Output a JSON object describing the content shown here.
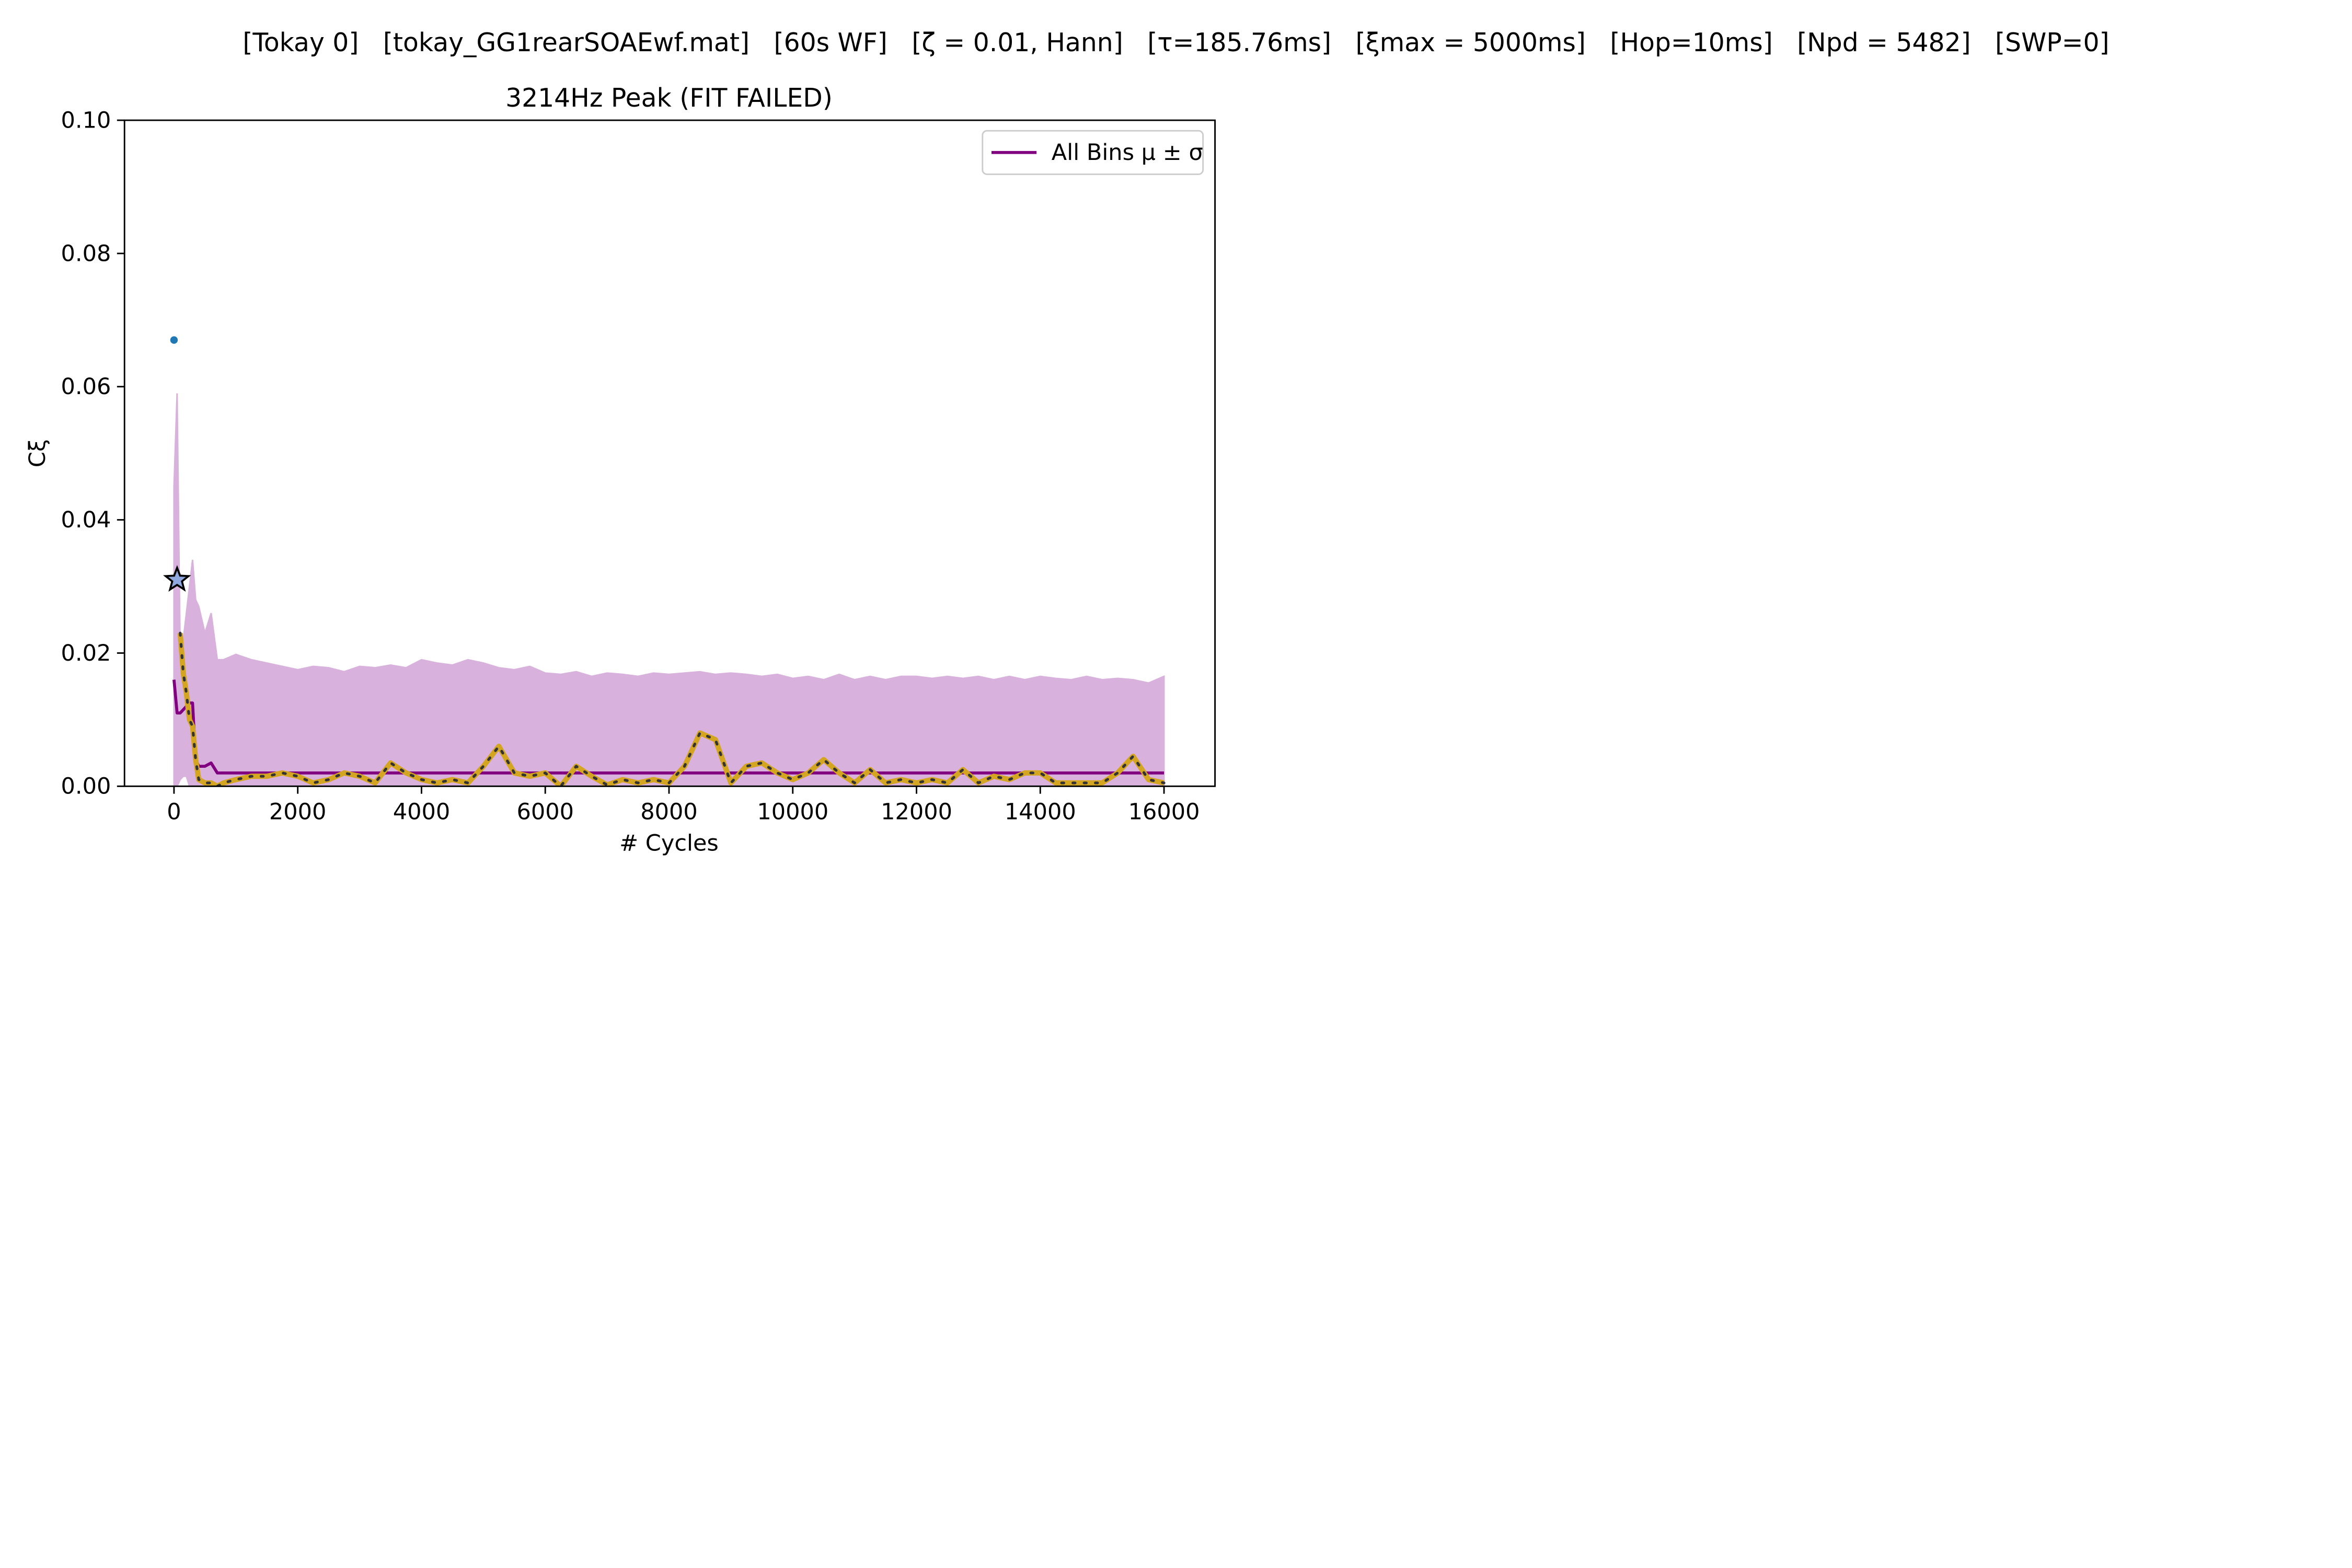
{
  "chart_data": {
    "type": "line",
    "suptitle": "[Tokay 0]   [tokay_GG1rearSOAEwf.mat]   [60s WF]   [ζ = 0.01, Hann]   [τ=185.76ms]   [ξmax = 5000ms]   [Hop=10ms]   [Npd = 5482]   [SWP=0]",
    "title": "3214Hz Peak (FIT FAILED)",
    "xlabel": "# Cycles",
    "ylabel": "Cξ",
    "xlim": [
      -800,
      16824
    ],
    "ylim": [
      0,
      0.1
    ],
    "xticks": [
      0,
      2000,
      4000,
      6000,
      8000,
      10000,
      12000,
      14000,
      16000
    ],
    "yticks": [
      {
        "value": 0,
        "label": "0.00"
      },
      {
        "value": 0.02,
        "label": "0.02"
      },
      {
        "value": 0.04,
        "label": "0.04"
      },
      {
        "value": 0.06,
        "label": "0.06"
      },
      {
        "value": 0.08,
        "label": "0.08"
      },
      {
        "value": 0.1,
        "label": "0.10"
      }
    ],
    "legend": "upper right",
    "x": [
      0,
      50,
      100,
      150,
      200,
      250,
      300,
      350,
      400,
      500,
      600,
      700,
      800,
      1000,
      1250,
      1500,
      1750,
      2000,
      2250,
      2500,
      2750,
      3000,
      3250,
      3500,
      3750,
      4000,
      4250,
      4500,
      4750,
      5000,
      5250,
      5500,
      5750,
      6000,
      6250,
      6500,
      6750,
      7000,
      7250,
      7500,
      7750,
      8000,
      8250,
      8500,
      8750,
      9000,
      9250,
      9500,
      9750,
      10000,
      10250,
      10500,
      10750,
      11000,
      11250,
      11500,
      11750,
      12000,
      12250,
      12500,
      12750,
      13000,
      13250,
      13500,
      13750,
      14000,
      14250,
      14500,
      14750,
      15000,
      15250,
      15500,
      15750,
      16000
    ],
    "series": [
      {
        "name": "All Bins μ ± σ",
        "color": "#800080",
        "band_color": "#d8b2dc",
        "values": [
          0.016,
          0.011,
          0.011,
          0.0115,
          0.012,
          0.0125,
          0.0125,
          0.004,
          0.003,
          0.003,
          0.0035,
          0.002,
          0.002,
          0.002,
          0.002,
          0.002,
          0.002,
          0.002,
          0.002,
          0.002,
          0.002,
          0.002,
          0.002,
          0.002,
          0.002,
          0.002,
          0.002,
          0.002,
          0.002,
          0.002,
          0.002,
          0.002,
          0.002,
          0.002,
          0.002,
          0.002,
          0.002,
          0.002,
          0.002,
          0.002,
          0.002,
          0.002,
          0.002,
          0.002,
          0.002,
          0.002,
          0.002,
          0.002,
          0.002,
          0.002,
          0.002,
          0.002,
          0.002,
          0.002,
          0.002,
          0.002,
          0.002,
          0.002,
          0.002,
          0.002,
          0.002,
          0.002,
          0.002,
          0.002,
          0.002,
          0.002,
          0.002,
          0.002,
          0.002,
          0.002,
          0.002,
          0.002,
          0.002,
          0.002
        ],
        "upper": [
          0.045,
          0.059,
          0.02,
          0.022,
          0.026,
          0.03,
          0.034,
          0.028,
          0.027,
          0.023,
          0.026,
          0.019,
          0.019,
          0.0198,
          0.019,
          0.0185,
          0.018,
          0.0175,
          0.018,
          0.0178,
          0.0172,
          0.018,
          0.0178,
          0.0182,
          0.0178,
          0.019,
          0.0185,
          0.0182,
          0.019,
          0.0185,
          0.0178,
          0.0175,
          0.018,
          0.017,
          0.0168,
          0.0172,
          0.0165,
          0.017,
          0.0168,
          0.0165,
          0.017,
          0.0168,
          0.017,
          0.0172,
          0.0168,
          0.017,
          0.0168,
          0.0165,
          0.0168,
          0.0162,
          0.0165,
          0.016,
          0.0168,
          0.016,
          0.0165,
          0.016,
          0.0165,
          0.0165,
          0.0162,
          0.0165,
          0.0162,
          0.0165,
          0.016,
          0.0165,
          0.016,
          0.0165,
          0.0162,
          0.016,
          0.0165,
          0.016,
          0.0162,
          0.016,
          0.0155,
          0.0165
        ],
        "lower": [
          0,
          0,
          0.001,
          0.0015,
          0.0015,
          0,
          0,
          0,
          0,
          0,
          0,
          0,
          0,
          0,
          0,
          0,
          0,
          0,
          0,
          0,
          0,
          0,
          0,
          0,
          0,
          0,
          0,
          0,
          0,
          0,
          0,
          0,
          0,
          0,
          0,
          0,
          0,
          0,
          0,
          0,
          0,
          0,
          0,
          0,
          0,
          0,
          0,
          0,
          0,
          0,
          0,
          0,
          0,
          0,
          0,
          0,
          0,
          0,
          0,
          0,
          0,
          0,
          0,
          0,
          0,
          0,
          0,
          0,
          0,
          0,
          0,
          0,
          0,
          0
        ]
      },
      {
        "color": "#d4a520",
        "dots": "#333333",
        "values": [
          null,
          null,
          0.023,
          0.017,
          0.014,
          0.01,
          0.009,
          0.004,
          0.001,
          0.0005,
          0.0005,
          0,
          0.0005,
          0.001,
          0.0015,
          0.0015,
          0.002,
          0.0015,
          0.0005,
          0.001,
          0.002,
          0.0015,
          0.0005,
          0.0035,
          0.002,
          0.001,
          0.0005,
          0.001,
          0.0005,
          0.003,
          0.006,
          0.002,
          0.0015,
          0.002,
          0,
          0.003,
          0.0015,
          0.0002,
          0.001,
          0.0005,
          0.001,
          0.0005,
          0.003,
          0.008,
          0.007,
          0.0005,
          0.003,
          0.0035,
          0.002,
          0.001,
          0.002,
          0.004,
          0.002,
          0.0005,
          0.0025,
          0.0005,
          0.001,
          0.0005,
          0.001,
          0.0005,
          0.0025,
          0.0005,
          0.0015,
          0.001,
          0.002,
          0.002,
          0.0005,
          0.0005,
          0.0005,
          0.0005,
          0.002,
          0.0045,
          0.001,
          0.0005
        ]
      }
    ],
    "points": [
      {
        "x": 0,
        "y": 0.067,
        "color": "#1f77b4",
        "marker": "dot"
      },
      {
        "x": 50,
        "y": 0.031,
        "color": "#8fa8e0",
        "marker": "star"
      }
    ]
  }
}
